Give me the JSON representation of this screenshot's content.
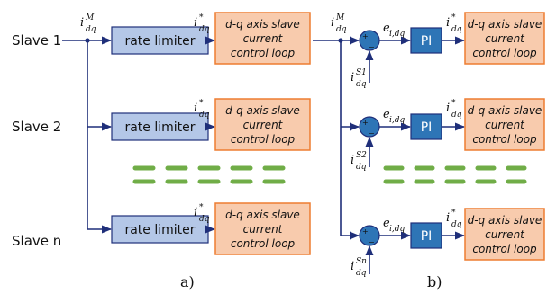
{
  "slaves": [
    {
      "label": "Slave 1",
      "sensor_superscript": "S1"
    },
    {
      "label": "Slave 2",
      "sensor_superscript": "S2"
    },
    {
      "label": "Slave n",
      "sensor_superscript": "Sn"
    }
  ],
  "blocks": {
    "rate_limiter": "rate limiter",
    "pi": "PI",
    "control_loop": [
      "d-q axis slave",
      "current",
      "control loop"
    ]
  },
  "signals": {
    "master_current": {
      "base": "i",
      "subscript": "dq",
      "superscript": "M"
    },
    "reference_current": {
      "base": "i",
      "subscript": "dq",
      "superscript": "*"
    },
    "error": {
      "base": "e",
      "subscript": "i,dq"
    },
    "sensor_base": "i",
    "sensor_subscript": "dq"
  },
  "summing_junction": {
    "plus": "+",
    "minus": "−"
  },
  "panels": {
    "a": "a)",
    "b": "b)"
  },
  "colors": {
    "wire": "#1f2f7a",
    "rate_limiter_fill": "#b4c7e7",
    "pi_fill": "#2e75b6",
    "control_loop_fill": "#f8cbad",
    "control_loop_border": "#ed7d31",
    "separator_dash": "#70ad47"
  }
}
